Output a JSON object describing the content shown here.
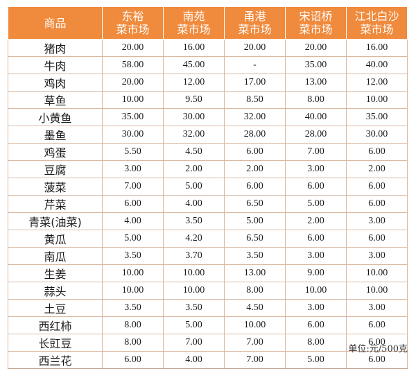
{
  "header": {
    "product": "商品",
    "markets": [
      {
        "line1": "东裕",
        "line2": "菜市场"
      },
      {
        "line1": "南苑",
        "line2": "菜市场"
      },
      {
        "line1": "甬港",
        "line2": "菜市场"
      },
      {
        "line1": "宋诏桥",
        "line2": "菜市场"
      },
      {
        "line1": "江北白沙",
        "line2": "菜市场"
      }
    ]
  },
  "rows": [
    {
      "name": "猪肉",
      "values": [
        "20.00",
        "16.00",
        "20.00",
        "20.00",
        "16.00"
      ]
    },
    {
      "name": "牛肉",
      "values": [
        "58.00",
        "45.00",
        "-",
        "35.00",
        "40.00"
      ]
    },
    {
      "name": "鸡肉",
      "values": [
        "20.00",
        "12.00",
        "17.00",
        "13.00",
        "12.00"
      ]
    },
    {
      "name": "草鱼",
      "values": [
        "10.00",
        "9.50",
        "8.50",
        "8.00",
        "10.00"
      ]
    },
    {
      "name": "小黄鱼",
      "values": [
        "35.00",
        "30.00",
        "32.00",
        "40.00",
        "35.00"
      ]
    },
    {
      "name": "墨鱼",
      "values": [
        "30.00",
        "32.00",
        "28.00",
        "28.00",
        "30.00"
      ]
    },
    {
      "name": "鸡蛋",
      "values": [
        "5.50",
        "4.50",
        "6.00",
        "7.00",
        "6.00"
      ]
    },
    {
      "name": "豆腐",
      "values": [
        "3.00",
        "2.00",
        "2.00",
        "3.00",
        "2.00"
      ]
    },
    {
      "name": "菠菜",
      "values": [
        "7.00",
        "5.00",
        "6.00",
        "6.00",
        "6.00"
      ]
    },
    {
      "name": "芹菜",
      "values": [
        "6.00",
        "4.00",
        "6.50",
        "5.00",
        "6.00"
      ]
    },
    {
      "name": "青菜(油菜)",
      "values": [
        "4.00",
        "3.50",
        "5.00",
        "2.00",
        "3.00"
      ]
    },
    {
      "name": "黄瓜",
      "values": [
        "5.00",
        "4.20",
        "6.50",
        "6.00",
        "6.00"
      ]
    },
    {
      "name": "南瓜",
      "values": [
        "3.50",
        "3.70",
        "3.50",
        "3.00",
        "3.00"
      ]
    },
    {
      "name": "生姜",
      "values": [
        "10.00",
        "10.00",
        "13.00",
        "9.00",
        "10.00"
      ]
    },
    {
      "name": "蒜头",
      "values": [
        "10.00",
        "10.00",
        "8.00",
        "10.00",
        "10.00"
      ]
    },
    {
      "name": "土豆",
      "values": [
        "3.50",
        "3.50",
        "4.50",
        "3.00",
        "3.00"
      ]
    },
    {
      "name": "西红柿",
      "values": [
        "8.00",
        "5.00",
        "10.00",
        "6.00",
        "6.00"
      ]
    },
    {
      "name": "长豇豆",
      "values": [
        "8.00",
        "7.00",
        "7.00",
        "8.00",
        "6.00"
      ]
    },
    {
      "name": "西兰花",
      "values": [
        "6.00",
        "4.00",
        "7.00",
        "5.00",
        "6.00"
      ]
    }
  ],
  "unit_note": "单位:元/500克",
  "colors": {
    "header_bg": "#f08a3c",
    "header_text": "#ffffff",
    "grid": "#d9b8a0"
  }
}
